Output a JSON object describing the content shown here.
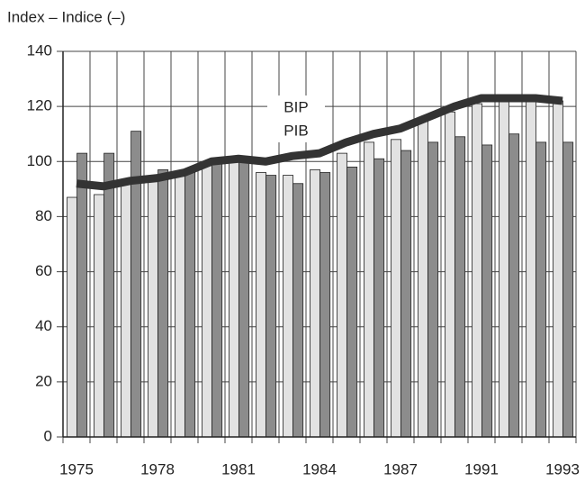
{
  "chart_data": {
    "type": "bar-line",
    "y_label": "Index – Indice (–)",
    "categories": [
      "1975",
      null,
      null,
      "1978",
      null,
      null,
      "1981",
      null,
      null,
      "1984",
      null,
      null,
      "1987",
      null,
      null,
      "1991",
      null,
      null,
      "1993"
    ],
    "series": [
      {
        "kind": "bar",
        "color": "#e2e2e2",
        "values": [
          87,
          88,
          93,
          94,
          96,
          99,
          100,
          96,
          95,
          97,
          103,
          107,
          108,
          116,
          118,
          121,
          122,
          122,
          122
        ]
      },
      {
        "kind": "bar",
        "color": "#8c8c8c",
        "values": [
          103,
          103,
          111,
          97,
          96,
          100,
          100,
          95,
          92,
          96,
          98,
          101,
          104,
          107,
          109,
          106,
          110,
          107,
          107
        ]
      },
      {
        "kind": "line",
        "color": "#333333",
        "values": [
          92,
          91,
          93,
          94,
          96,
          100,
          101,
          100,
          102,
          103,
          107,
          110,
          112,
          116,
          120,
          123,
          123,
          123,
          122
        ]
      }
    ],
    "annotations": [
      "BIP",
      "PIB"
    ],
    "ylim": [
      0,
      140
    ],
    "yticks": [
      0,
      20,
      40,
      60,
      80,
      100,
      120,
      140
    ],
    "grid": true
  }
}
